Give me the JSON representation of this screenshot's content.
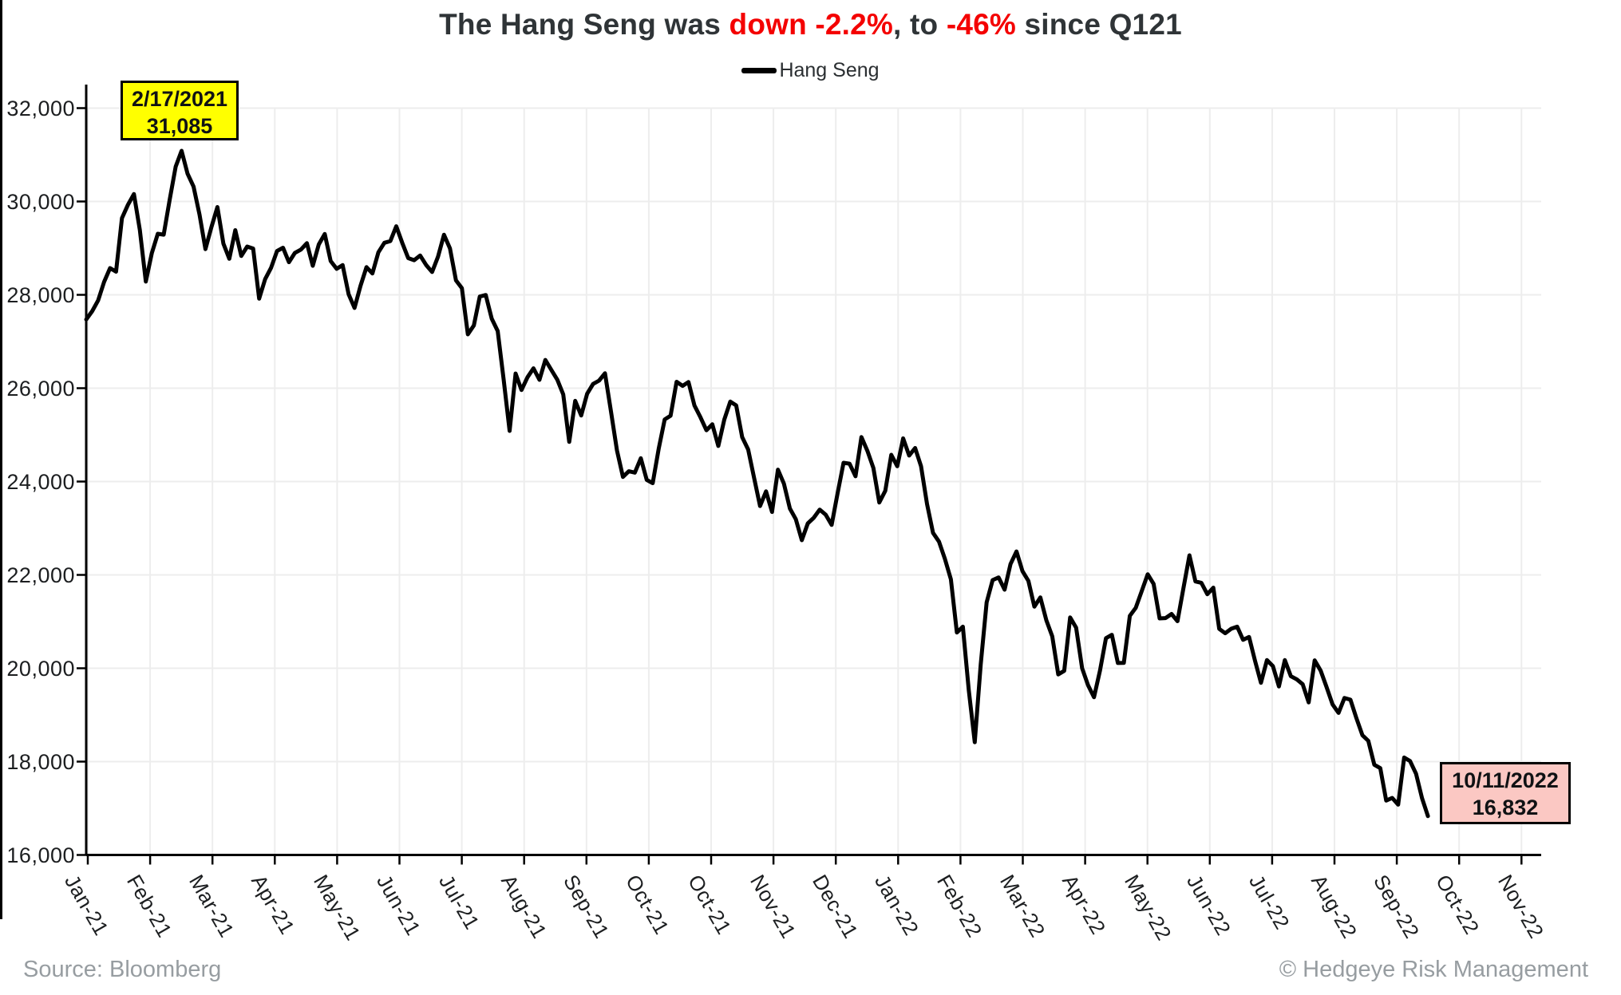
{
  "title": {
    "part1": "The Hang Seng was ",
    "part2": "down -2.2%",
    "part3": ", to ",
    "part4": "-46%",
    "part5": " since Q121"
  },
  "legend": {
    "label": "Hang Seng"
  },
  "annotations": {
    "peak": {
      "line1": "2/17/2021",
      "line2": "31,085"
    },
    "trough": {
      "line1": "10/11/2022",
      "line2": "16,832"
    }
  },
  "footer": {
    "source": "Source: Bloomberg",
    "copyright": "© Hedgeye Risk Management"
  },
  "colors": {
    "accent_red": "#f40000",
    "line": "#000000",
    "axis": "#000000",
    "grid": "#ededed",
    "peak_box_bg": "#ffff00",
    "trough_box_bg": "#fbc8c3",
    "title_text": "#2f3437",
    "axis_text": "#1c1e20",
    "footer_text": "#979da1"
  },
  "chart_data": {
    "type": "line",
    "title": "The Hang Seng was down -2.2%, to -46% since Q121",
    "xlabel": "",
    "ylabel": "",
    "ylim": [
      16000,
      32000
    ],
    "grid": true,
    "legend_position": "top-center",
    "y_tick_labels": [
      "16,000",
      "18,000",
      "20,000",
      "22,000",
      "24,000",
      "26,000",
      "28,000",
      "30,000",
      "32,000"
    ],
    "y_tick_values": [
      16000,
      18000,
      20000,
      22000,
      24000,
      26000,
      28000,
      30000,
      32000
    ],
    "x_tick_labels": [
      "Jan-21",
      "Feb-21",
      "Mar-21",
      "Apr-21",
      "May-21",
      "Jun-21",
      "Jul-21",
      "Aug-21",
      "Sep-21",
      "Oct-21",
      "Oct-21",
      "Nov-21",
      "Dec-21",
      "Jan-22",
      "Feb-22",
      "Mar-22",
      "Apr-22",
      "May-22",
      "Jun-22",
      "Jul-22",
      "Aug-22",
      "Sep-22",
      "Oct-22",
      "Nov-22"
    ],
    "line_end_tick_fraction": 21.5,
    "peak": {
      "date": "2/17/2021",
      "value": 31085
    },
    "trough": {
      "date": "10/11/2022",
      "value": 16832
    },
    "series": [
      {
        "name": "Hang Seng",
        "values": [
          27472,
          27649,
          27878,
          28276,
          28573,
          28496,
          29642,
          29928,
          30159,
          29391,
          28284,
          28893,
          29307,
          29289,
          30038,
          30746,
          31085,
          30595,
          30319,
          29718,
          28980,
          29452,
          29880,
          29098,
          28773,
          29385,
          28833,
          29034,
          28991,
          27918,
          28336,
          28577,
          28938,
          29008,
          28699,
          28900,
          28970,
          29106,
          28622,
          29079,
          29303,
          28725,
          28557,
          28638,
          28014,
          27719,
          28194,
          28594,
          28458,
          28911,
          29114,
          29152,
          29468,
          29113,
          28787,
          28742,
          28842,
          28639,
          28489,
          28817,
          29288,
          28994,
          28310,
          28143,
          27153,
          27344,
          27963,
          27996,
          27489,
          27224,
          26192,
          25086,
          26315,
          25961,
          26235,
          26426,
          26179,
          26605,
          26392,
          26181,
          25867,
          24850,
          25728,
          25415,
          25879,
          26090,
          26163,
          26320,
          25502,
          24668,
          24099,
          24221,
          24192,
          24500,
          24036,
          23966,
          24702,
          25330,
          25410,
          26136,
          26049,
          26132,
          25629,
          25377,
          25099,
          25226,
          24763,
          25328,
          25713,
          25630,
          24951,
          24685,
          24080,
          23475,
          23789,
          23349,
          24254,
          23954,
          23420,
          23193,
          22744,
          23102,
          23224,
          23398,
          23290,
          23072,
          23746,
          24402,
          24383,
          24113,
          24952,
          24656,
          24289,
          23550,
          23802,
          24573,
          24329,
          24925,
          24557,
          24718,
          24328,
          23520,
          22901,
          22713,
          22343,
          21905,
          20765,
          20891,
          19531,
          18415,
          20087,
          21412,
          21889,
          21945,
          21684,
          22232,
          22502,
          22081,
          21872,
          21319,
          21518,
          21028,
          20683,
          19869,
          19946,
          21089,
          20870,
          20002,
          19634,
          19380,
          19950,
          20644,
          20717,
          20112,
          20116,
          21123,
          21294,
          21653,
          22014,
          21806,
          21068,
          21075,
          21163,
          21008,
          21719,
          22418,
          21860,
          21830,
          21586,
          21726,
          20844,
          20751,
          20846,
          20890,
          20609,
          20670,
          20157,
          19689,
          20174,
          20045,
          19610,
          20175,
          19830,
          19763,
          19656,
          19268,
          20170,
          19949,
          19597,
          19225,
          19044,
          19362,
          19326,
          18930,
          18565,
          18444,
          17933,
          17860,
          17165,
          17223,
          17079,
          18087,
          18012,
          17740,
          17217,
          16832
        ]
      }
    ]
  }
}
